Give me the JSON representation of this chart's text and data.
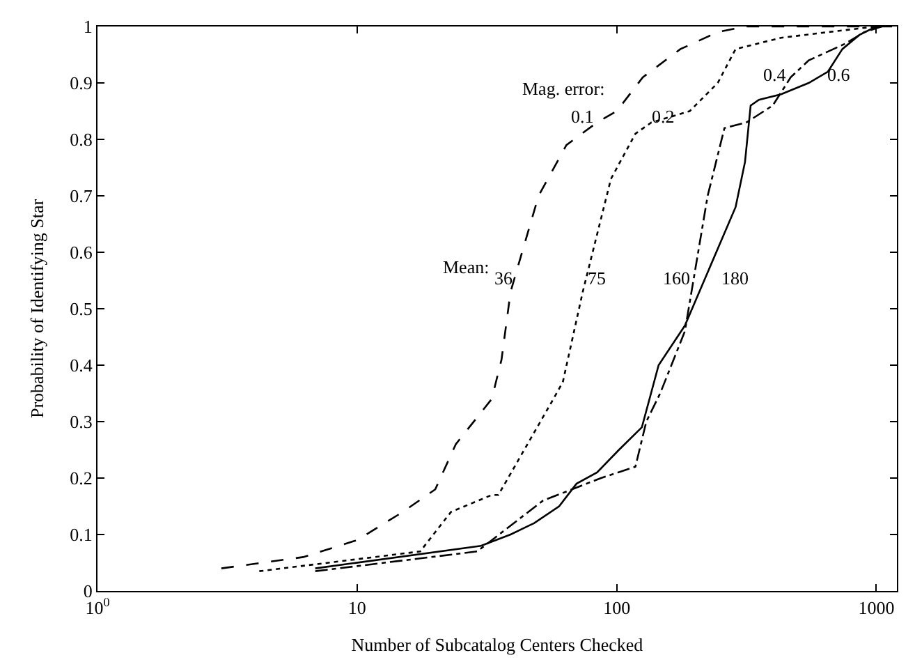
{
  "chart_data": {
    "type": "line",
    "xlabel": "Number of Subcatalog Centers Checked",
    "ylabel": "Probability of Identifying Star",
    "log": "x",
    "xlim": [
      1,
      1200
    ],
    "xticks": [
      {
        "value": 1,
        "label": "10$^{0}$"
      },
      10,
      100,
      1000
    ],
    "ylim": [
      0,
      1
    ],
    "yticks": [
      0,
      0.1,
      0.2,
      0.3,
      0.4,
      0.5,
      0.6,
      0.7,
      0.8,
      0.9,
      1
    ],
    "series": [
      {
        "color": "#000000",
        "line_style": "dashed",
        "x": [
          3,
          6.2,
          10,
          15,
          20,
          24,
          33,
          36,
          39,
          50,
          64,
          84,
          100,
          126,
          176,
          245,
          312,
          1000
        ],
        "values": [
          0.04,
          0.06,
          0.09,
          0.14,
          0.18,
          0.26,
          0.34,
          0.41,
          0.53,
          0.7,
          0.79,
          0.83,
          0.85,
          0.91,
          0.96,
          0.99,
          1.0,
          1.0
        ]
      },
      {
        "color": "#000000",
        "line_style": "dotted",
        "x": [
          4.2,
          17.5,
          23,
          33,
          35,
          57,
          62,
          74,
          95,
          118,
          136,
          191,
          245,
          287,
          430,
          651,
          1000
        ],
        "values": [
          0.035,
          0.07,
          0.14,
          0.17,
          0.17,
          0.34,
          0.37,
          0.53,
          0.73,
          0.81,
          0.83,
          0.85,
          0.9,
          0.96,
          0.98,
          0.99,
          1.0
        ]
      },
      {
        "color": "#000000",
        "line_style": "dashdot",
        "x": [
          6.9,
          29,
          52,
          87,
          118,
          130,
          147,
          183,
          224,
          260,
          316,
          399,
          468,
          549,
          763,
          898,
          1050
        ],
        "values": [
          0.035,
          0.07,
          0.16,
          0.2,
          0.22,
          0.3,
          0.35,
          0.46,
          0.7,
          0.82,
          0.83,
          0.86,
          0.91,
          0.94,
          0.97,
          0.99,
          1.0
        ]
      },
      {
        "color": "#000000",
        "line_style": "solid",
        "x": [
          6.9,
          30,
          39,
          48,
          60,
          70,
          84,
          102,
          125,
          145,
          183,
          287,
          312,
          328,
          353,
          430,
          549,
          651,
          740,
          860,
          1000,
          1150
        ],
        "values": [
          0.04,
          0.08,
          0.1,
          0.12,
          0.15,
          0.19,
          0.21,
          0.25,
          0.29,
          0.4,
          0.47,
          0.68,
          0.76,
          0.86,
          0.87,
          0.88,
          0.9,
          0.92,
          0.96,
          0.985,
          1.0,
          1.0
        ]
      }
    ],
    "annotations": [
      "Mag. error:",
      "0.1",
      "0.2",
      "0.4",
      "0.6",
      "Mean:",
      "36",
      "75",
      "160",
      "180"
    ]
  }
}
